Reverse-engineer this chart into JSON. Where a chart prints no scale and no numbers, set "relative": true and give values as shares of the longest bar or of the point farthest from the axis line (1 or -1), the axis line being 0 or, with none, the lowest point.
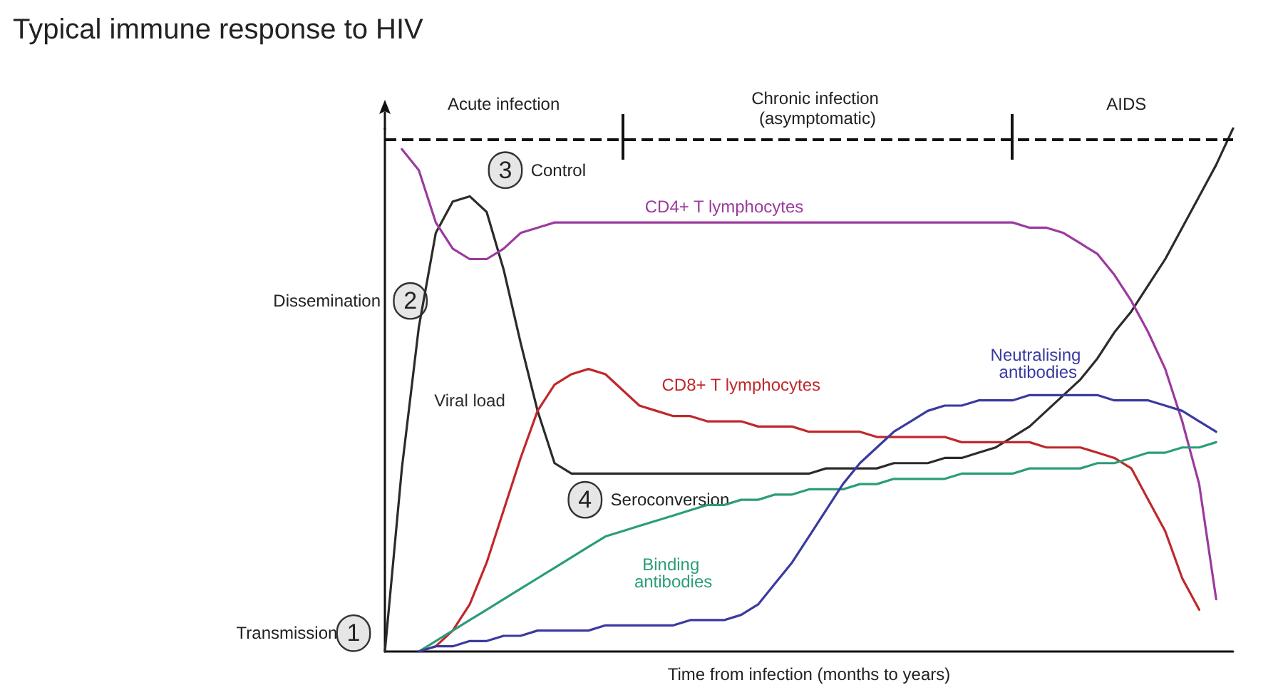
{
  "chart_data": {
    "type": "line",
    "title": "Typical immune response to HIV",
    "xlabel": "Time from infection (months to years)",
    "relative": true,
    "legend": false,
    "grid": false,
    "marker": "none",
    "line_style": "solid",
    "tick_labels": false,
    "categories": [
      null,
      null,
      null,
      null,
      null,
      null,
      null,
      null,
      null,
      null,
      null,
      null,
      null,
      null,
      null,
      null,
      null,
      null,
      null,
      null,
      null,
      null,
      null,
      null,
      null,
      null,
      null,
      null,
      null,
      null,
      null,
      null,
      null,
      null,
      null,
      null,
      null,
      null,
      null,
      null,
      null,
      null,
      null,
      null,
      null,
      null,
      null,
      null,
      null,
      null,
      null
    ],
    "series": [
      {
        "name": "Viral load",
        "color": "#2b2b2b",
        "values": [
          0,
          0.35,
          0.62,
          0.8,
          0.86,
          0.87,
          0.84,
          0.73,
          0.59,
          0.46,
          0.36,
          0.34,
          0.34,
          0.34,
          0.34,
          0.34,
          0.34,
          0.34,
          0.34,
          0.34,
          0.34,
          0.34,
          0.34,
          0.34,
          0.34,
          0.34,
          0.35,
          0.35,
          0.35,
          0.35,
          0.36,
          0.36,
          0.36,
          0.37,
          0.37,
          0.38,
          0.39,
          0.41,
          0.43,
          0.46,
          0.49,
          0.52,
          0.56,
          0.61,
          0.65,
          0.7,
          0.75,
          0.81,
          0.87,
          0.93,
          1
        ]
      },
      {
        "name": "CD4+ T lymphocytes",
        "color": "#9b3a9e",
        "values": [
          null,
          0.96,
          0.92,
          0.82,
          0.77,
          0.75,
          0.75,
          0.77,
          0.8,
          0.81,
          0.82,
          0.82,
          0.82,
          0.82,
          0.82,
          0.82,
          0.82,
          0.82,
          0.82,
          0.82,
          0.82,
          0.82,
          0.82,
          0.82,
          0.82,
          0.82,
          0.82,
          0.82,
          0.82,
          0.82,
          0.82,
          0.82,
          0.82,
          0.82,
          0.82,
          0.82,
          0.82,
          0.82,
          0.81,
          0.81,
          0.8,
          0.78,
          0.76,
          0.72,
          0.67,
          0.61,
          0.54,
          0.44,
          0.32,
          0.1,
          null
        ]
      },
      {
        "name": "CD8+ T lymphocytes",
        "color": "#c0282b",
        "values": [
          null,
          null,
          0,
          0.01,
          0.04,
          0.09,
          0.17,
          0.27,
          0.37,
          0.46,
          0.51,
          0.53,
          0.54,
          0.53,
          0.5,
          0.47,
          0.46,
          0.45,
          0.45,
          0.44,
          0.44,
          0.44,
          0.43,
          0.43,
          0.43,
          0.42,
          0.42,
          0.42,
          0.42,
          0.41,
          0.41,
          0.41,
          0.41,
          0.41,
          0.4,
          0.4,
          0.4,
          0.4,
          0.4,
          0.39,
          0.39,
          0.39,
          0.38,
          0.37,
          0.35,
          0.29,
          0.23,
          0.14,
          0.08,
          null,
          null
        ]
      },
      {
        "name": "Binding antibodies",
        "color": "#2a9d7a",
        "values": [
          null,
          null,
          0,
          0.02,
          0.04,
          0.06,
          0.08,
          0.1,
          0.12,
          0.14,
          0.16,
          0.18,
          0.2,
          0.22,
          0.23,
          0.24,
          0.25,
          0.26,
          0.27,
          0.28,
          0.28,
          0.29,
          0.29,
          0.3,
          0.3,
          0.31,
          0.31,
          0.31,
          0.32,
          0.32,
          0.33,
          0.33,
          0.33,
          0.33,
          0.34,
          0.34,
          0.34,
          0.34,
          0.35,
          0.35,
          0.35,
          0.35,
          0.36,
          0.36,
          0.37,
          0.38,
          0.38,
          0.39,
          0.39,
          0.4,
          null
        ]
      },
      {
        "name": "Neutralising antibodies",
        "color": "#3a3aa0",
        "values": [
          null,
          null,
          0,
          0.01,
          0.01,
          0.02,
          0.02,
          0.03,
          0.03,
          0.04,
          0.04,
          0.04,
          0.04,
          0.05,
          0.05,
          0.05,
          0.05,
          0.05,
          0.06,
          0.06,
          0.06,
          0.07,
          0.09,
          0.13,
          0.17,
          0.22,
          0.27,
          0.32,
          0.36,
          0.39,
          0.42,
          0.44,
          0.46,
          0.47,
          0.47,
          0.48,
          0.48,
          0.48,
          0.49,
          0.49,
          0.49,
          0.49,
          0.49,
          0.48,
          0.48,
          0.48,
          0.47,
          0.46,
          0.44,
          0.42,
          null
        ]
      }
    ],
    "ref_lines": [
      {
        "axis": "y",
        "value": 0.978,
        "label": null,
        "line_style": "dashed"
      }
    ],
    "annotations": [
      "Acute infection",
      "Chronic infection (asymptomatic)",
      "AIDS",
      "Transmission",
      "1",
      "Dissemination",
      "2",
      "3",
      "Control",
      "4",
      "Seroconversion"
    ]
  }
}
